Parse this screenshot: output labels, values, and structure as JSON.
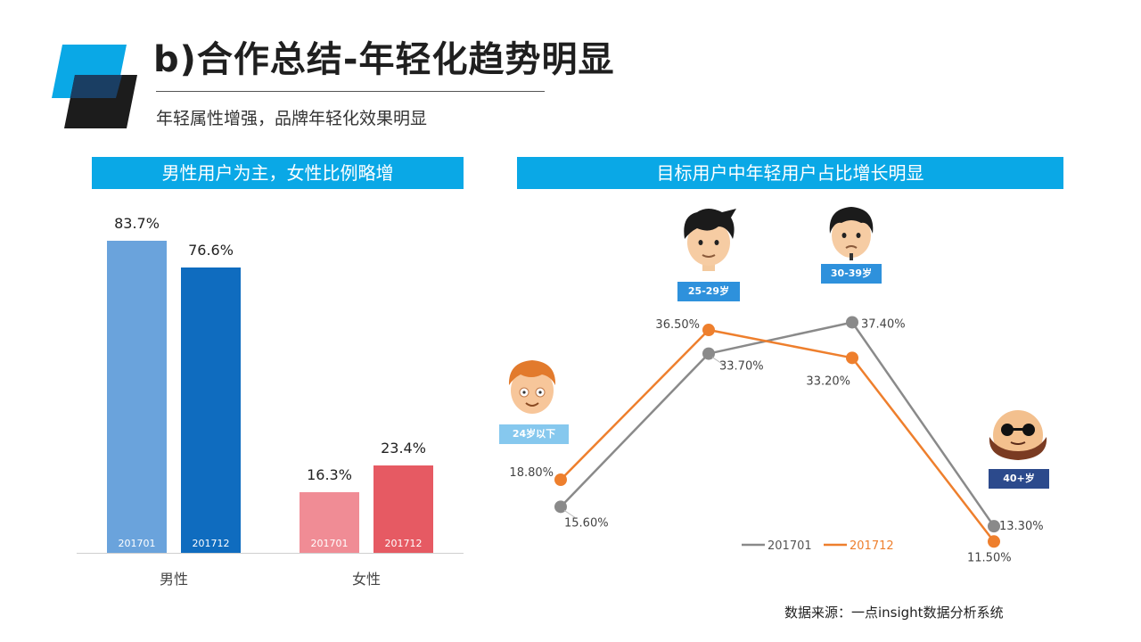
{
  "header": {
    "title": "b)合作总结-年轻化趋势明显",
    "subtitle": "年轻属性增强，品牌年轻化效果明显"
  },
  "left_panel": {
    "banner": "男性用户为主，女性比例略增"
  },
  "right_panel": {
    "banner": "目标用户中年轻用户占比增长明显"
  },
  "chart_data": [
    {
      "type": "bar",
      "categories": [
        "男性",
        "女性"
      ],
      "series": [
        {
          "name": "201701",
          "values": [
            83.7,
            16.3
          ],
          "labels": [
            "83.7%",
            "16.3%"
          ]
        },
        {
          "name": "201712",
          "values": [
            76.6,
            23.4
          ],
          "labels": [
            "76.6%",
            "23.4%"
          ]
        }
      ],
      "colors": {
        "男性": [
          "#6aa3dc",
          "#0f6cbf"
        ],
        "女性": [
          "#f08c95",
          "#e65a63"
        ]
      },
      "ylim": [
        0,
        100
      ],
      "title": "",
      "xlabel": "",
      "ylabel": ""
    },
    {
      "type": "line",
      "categories": [
        "24岁以下",
        "25-29岁",
        "30-39岁",
        "40+岁"
      ],
      "series": [
        {
          "name": "201701",
          "color": "#8a8a8a",
          "values": [
            15.6,
            33.7,
            37.4,
            13.3
          ],
          "labels": [
            "15.60%",
            "33.70%",
            "37.40%",
            "13.30%"
          ]
        },
        {
          "name": "201712",
          "color": "#ee7f2d",
          "values": [
            18.8,
            36.5,
            33.2,
            11.5
          ],
          "labels": [
            "18.80%",
            "36.50%",
            "33.20%",
            "11.50%"
          ]
        }
      ],
      "tag_colors": [
        "#86c8ee",
        "#2e91dc",
        "#2e91dc",
        "#2c4a8c"
      ],
      "legend_position": "bottom",
      "title": "",
      "xlabel": "",
      "ylabel": ""
    }
  ],
  "footer": {
    "source": "数据来源：一点insight数据分析系统"
  }
}
